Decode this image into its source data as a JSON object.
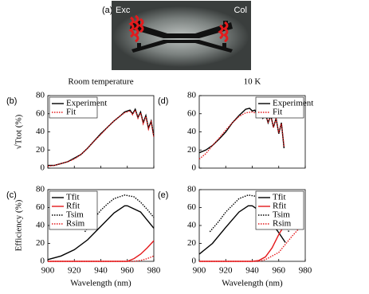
{
  "panel_a": {
    "label": "(a)",
    "left_label": "Exc",
    "right_label": "Col"
  },
  "chart_data": [
    {
      "type": "line",
      "panel_label": "(b)",
      "title": "Room temperature",
      "ylabel": "√Ttot (%)",
      "xlim": [
        900,
        980
      ],
      "xticks": [
        900,
        920,
        940,
        960,
        980
      ],
      "xtick_labels": false,
      "ylim": [
        0,
        80
      ],
      "yticks": [
        0,
        20,
        40,
        60,
        80
      ],
      "legend": "upper left",
      "series": [
        {
          "name": "Experiment",
          "color": "#000000",
          "dash": "solid",
          "x": [
            900,
            905,
            910,
            915,
            920,
            925,
            930,
            935,
            940,
            945,
            950,
            955,
            958,
            960,
            962,
            964,
            966,
            968,
            970,
            972,
            974,
            976,
            978,
            980
          ],
          "values": [
            3,
            3,
            5,
            7,
            11,
            15,
            22,
            30,
            38,
            45,
            52,
            58,
            62,
            63,
            64,
            60,
            65,
            56,
            62,
            50,
            58,
            44,
            52,
            35
          ]
        },
        {
          "name": "Fit",
          "color": "#e41a1c",
          "dash": "dotted",
          "x": [
            900,
            905,
            910,
            915,
            920,
            925,
            930,
            935,
            940,
            945,
            950,
            955,
            958,
            960,
            962,
            964,
            966,
            968,
            970,
            972,
            974,
            976,
            978,
            980
          ],
          "values": [
            2,
            3,
            5,
            7,
            10,
            15,
            22,
            30,
            37,
            45,
            52,
            58,
            61,
            62,
            63,
            59,
            64,
            55,
            61,
            49,
            57,
            43,
            51,
            34
          ]
        }
      ]
    },
    {
      "type": "line",
      "panel_label": "(d)",
      "title": "10 K",
      "xlim": [
        900,
        980
      ],
      "xticks": [
        900,
        920,
        940,
        960,
        980
      ],
      "xtick_labels": false,
      "ylim": [
        0,
        80
      ],
      "yticks": [
        0,
        20,
        40,
        60,
        80
      ],
      "legend": "upper right",
      "series": [
        {
          "name": "Experiment",
          "color": "#000000",
          "dash": "solid",
          "x": [
            900,
            905,
            910,
            915,
            920,
            925,
            930,
            935,
            938,
            940,
            942,
            944,
            946,
            948,
            950,
            952,
            954,
            956,
            958,
            960,
            962,
            964
          ],
          "values": [
            17,
            20,
            25,
            32,
            40,
            50,
            58,
            65,
            66,
            63,
            64,
            58,
            62,
            55,
            60,
            50,
            58,
            45,
            55,
            38,
            50,
            22
          ]
        },
        {
          "name": "Fit",
          "color": "#e41a1c",
          "dash": "dotted",
          "x": [
            900,
            905,
            910,
            915,
            920,
            925,
            930,
            935,
            940,
            942,
            944,
            946,
            948,
            950,
            952,
            954,
            956,
            958,
            960,
            962,
            964
          ],
          "values": [
            10,
            16,
            25,
            33,
            42,
            50,
            57,
            61,
            62,
            61,
            59,
            61,
            56,
            59,
            51,
            57,
            46,
            54,
            39,
            49,
            24
          ]
        }
      ]
    },
    {
      "type": "line",
      "panel_label": "(c)",
      "ylabel": "Efficiency (%)",
      "xlabel": "Wavelength (nm)",
      "xlim": [
        900,
        980
      ],
      "xticks": [
        900,
        920,
        940,
        960,
        980
      ],
      "xtick_labels": true,
      "ylim": [
        0,
        80
      ],
      "yticks": [
        0,
        20,
        40,
        60,
        80
      ],
      "legend": "upper left",
      "series": [
        {
          "name": "Tfit",
          "color": "#000000",
          "dash": "solid",
          "x": [
            900,
            910,
            920,
            930,
            940,
            950,
            958,
            960,
            970,
            980
          ],
          "values": [
            2,
            6,
            13,
            24,
            39,
            54,
            62,
            62,
            55,
            37
          ]
        },
        {
          "name": "Rfit",
          "color": "#e41a1c",
          "dash": "solid",
          "x": [
            900,
            950,
            960,
            965,
            970,
            975,
            980
          ],
          "values": [
            0,
            0,
            0,
            3,
            8,
            15,
            23
          ]
        },
        {
          "name": "Tsim",
          "color": "#000000",
          "dash": "dotted",
          "x": [
            928,
            935,
            940,
            945,
            950,
            958,
            965,
            970,
            975,
            980
          ],
          "values": [
            33,
            48,
            57,
            64,
            70,
            74,
            72,
            66,
            58,
            49
          ]
        },
        {
          "name": "Rsim",
          "color": "#e41a1c",
          "dash": "dotted",
          "x": [
            900,
            950,
            965,
            970,
            975,
            980
          ],
          "values": [
            0,
            0,
            0,
            1,
            3,
            6
          ]
        }
      ]
    },
    {
      "type": "line",
      "panel_label": "(e)",
      "xlabel": "Wavelength (nm)",
      "xlim": [
        900,
        980
      ],
      "xticks": [
        900,
        920,
        940,
        960,
        980
      ],
      "xtick_labels": true,
      "ylim": [
        0,
        80
      ],
      "yticks": [
        0,
        20,
        40,
        60,
        80
      ],
      "legend": "upper right",
      "series": [
        {
          "name": "Tfit",
          "color": "#000000",
          "dash": "solid",
          "x": [
            900,
            910,
            920,
            930,
            937,
            940,
            950,
            960,
            965
          ],
          "values": [
            8,
            20,
            38,
            55,
            62,
            62,
            52,
            32,
            21
          ]
        },
        {
          "name": "Rfit",
          "color": "#e41a1c",
          "dash": "solid",
          "x": [
            900,
            940,
            945,
            950,
            955,
            960,
            965
          ],
          "values": [
            0,
            0,
            1,
            5,
            15,
            30,
            42
          ]
        },
        {
          "name": "Tsim",
          "color": "#000000",
          "dash": "dotted",
          "x": [
            908,
            915,
            920,
            930,
            937,
            945,
            955,
            965,
            968
          ],
          "values": [
            33,
            45,
            55,
            70,
            74,
            72,
            58,
            40,
            32
          ]
        },
        {
          "name": "Rsim",
          "color": "#e41a1c",
          "dash": "dotted",
          "x": [
            900,
            945,
            950,
            960,
            970,
            978
          ],
          "values": [
            0,
            0,
            2,
            10,
            28,
            41
          ]
        }
      ]
    }
  ]
}
